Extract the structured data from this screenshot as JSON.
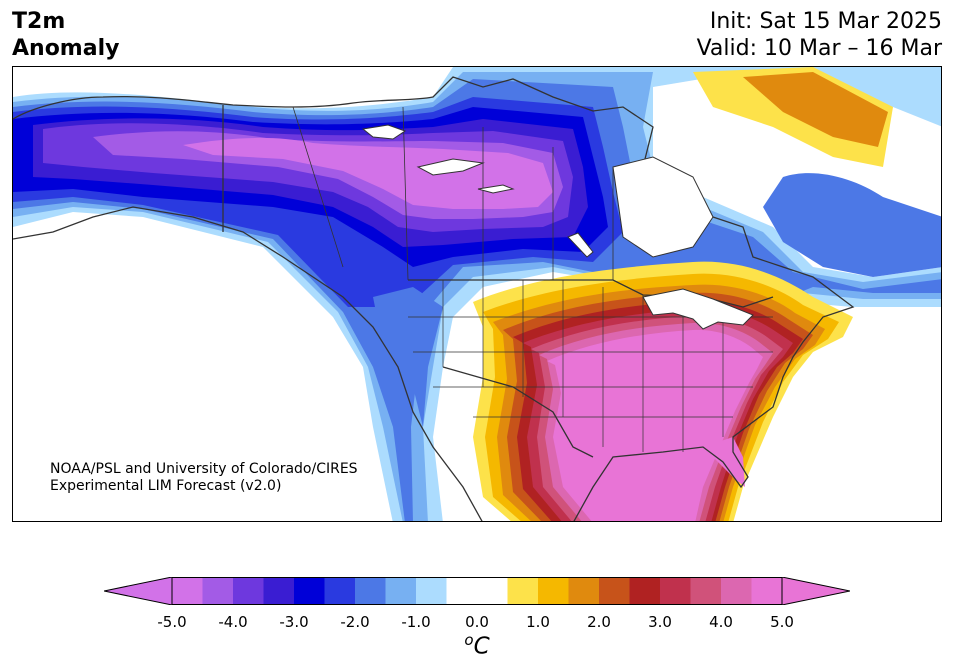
{
  "header": {
    "title_line1": "T2m",
    "title_line2": "Anomaly",
    "init": "Init: Sat 15 Mar 2025",
    "valid": "Valid: 10 Mar – 16 Mar"
  },
  "credit": {
    "line1": "NOAA/PSL and University of Colorado/CIRES",
    "line2": "Experimental LIM Forecast (v2.0)"
  },
  "colorbar": {
    "unit_base": "C",
    "unit_sup": "o",
    "tick_labels": [
      "-5.0",
      "-4.0",
      "-3.0",
      "-2.0",
      "-1.0",
      "0.0",
      "1.0",
      "2.0",
      "3.0",
      "4.0",
      "5.0"
    ],
    "bins": [
      {
        "min": -5.0,
        "max": -4.5,
        "color": "#d272e8"
      },
      {
        "min": -4.5,
        "max": -4.0,
        "color": "#a35be6"
      },
      {
        "min": -4.0,
        "max": -3.5,
        "color": "#6e38de"
      },
      {
        "min": -3.5,
        "max": -3.0,
        "color": "#3a1dd2"
      },
      {
        "min": -3.0,
        "max": -2.5,
        "color": "#0000d8"
      },
      {
        "min": -2.5,
        "max": -2.0,
        "color": "#2a3ae0"
      },
      {
        "min": -2.0,
        "max": -1.5,
        "color": "#4c78e6"
      },
      {
        "min": -1.5,
        "max": -1.0,
        "color": "#77b0f2"
      },
      {
        "min": -1.0,
        "max": -0.5,
        "color": "#acdcfe"
      },
      {
        "min": -0.5,
        "max": 0.5,
        "color": "#ffffff"
      },
      {
        "min": 0.5,
        "max": 1.0,
        "color": "#fde24a"
      },
      {
        "min": 1.0,
        "max": 1.5,
        "color": "#f5b800"
      },
      {
        "min": 1.5,
        "max": 2.0,
        "color": "#e08a0e"
      },
      {
        "min": 2.0,
        "max": 2.5,
        "color": "#c7531a"
      },
      {
        "min": 2.5,
        "max": 3.0,
        "color": "#b02222"
      },
      {
        "min": 3.0,
        "max": 3.5,
        "color": "#c0314d"
      },
      {
        "min": 3.5,
        "max": 4.0,
        "color": "#d0527a"
      },
      {
        "min": 4.0,
        "max": 4.5,
        "color": "#dc67b0"
      },
      {
        "min": 4.5,
        "max": 5.0,
        "color": "#e874d6"
      }
    ],
    "under_color": "#d272e8",
    "over_color": "#e874d6"
  }
}
